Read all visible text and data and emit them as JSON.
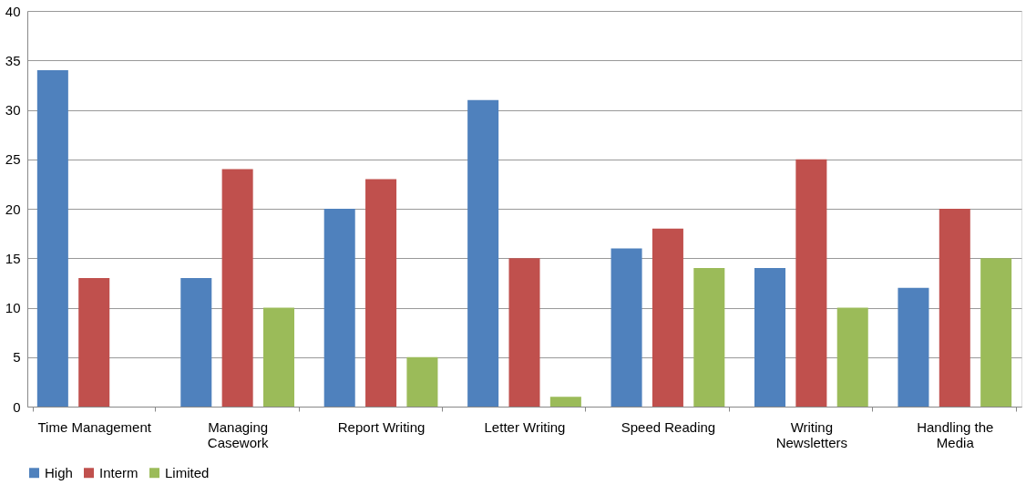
{
  "chart_data": {
    "type": "bar",
    "categories": [
      "Time Management",
      "Managing Casework",
      "Report Writing",
      "Letter Writing",
      "Speed Reading",
      "Writing Newsletters",
      "Handling the Media"
    ],
    "series": [
      {
        "name": "High",
        "color": "#4f81bd",
        "values": [
          34,
          13,
          20,
          31,
          16,
          14,
          12
        ]
      },
      {
        "name": "Interm",
        "color": "#c0504d",
        "values": [
          13,
          24,
          23,
          15,
          18,
          25,
          20
        ]
      },
      {
        "name": "Limited",
        "color": "#9bbb59",
        "values": [
          null,
          10,
          5,
          1,
          14,
          10,
          15
        ]
      }
    ],
    "ylim": [
      0,
      40
    ],
    "yticks": [
      0,
      5,
      10,
      15,
      20,
      25,
      30,
      35,
      40
    ],
    "grid": "y",
    "legend": "bottom"
  }
}
